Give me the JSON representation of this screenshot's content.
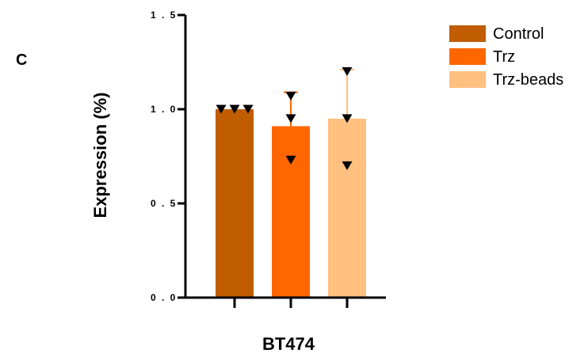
{
  "panel_label": "C",
  "chart_data": {
    "type": "bar",
    "title": "",
    "xlabel": "BT474",
    "ylabel": "Expression (%)",
    "ylim": [
      0.0,
      1.5
    ],
    "yticks": [
      "0 . 0",
      "0 . 5",
      "1 . 0",
      "1 . 5"
    ],
    "ytick_values": [
      0.0,
      0.5,
      1.0,
      1.5
    ],
    "grid": false,
    "legend_position": "top-right",
    "series": [
      {
        "name": "Control",
        "color": "#c05d00",
        "value": 1.0,
        "error_upper": 1.0,
        "points": [
          1.0,
          1.0,
          1.0
        ]
      },
      {
        "name": "Trz",
        "color": "#ff6600",
        "value": 0.91,
        "error_upper": 1.09,
        "points": [
          1.07,
          0.95,
          0.73
        ]
      },
      {
        "name": "Trz-beads",
        "color": "#ffc080",
        "value": 0.95,
        "error_upper": 1.21,
        "points": [
          1.2,
          0.95,
          0.7
        ]
      }
    ],
    "point_marker": "down-triangle"
  }
}
